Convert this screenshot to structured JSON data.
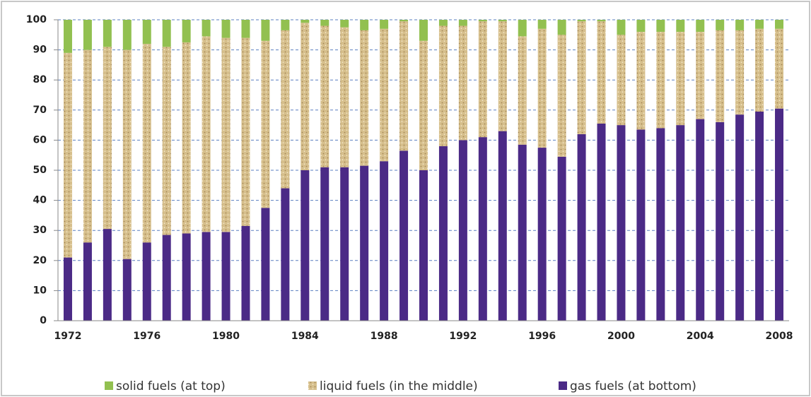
{
  "chart_data": {
    "type": "stacked-bar",
    "categories": [
      "1972",
      null,
      null,
      null,
      "1976",
      null,
      null,
      null,
      "1980",
      null,
      null,
      null,
      "1984",
      null,
      null,
      null,
      "1988",
      null,
      null,
      null,
      "1992",
      null,
      null,
      null,
      "1996",
      null,
      null,
      null,
      "2000",
      null,
      null,
      null,
      "2004",
      null,
      null,
      null,
      "2008"
    ],
    "series": [
      {
        "name": "solid fuels (at top)",
        "color": "#92c050",
        "values": [
          11,
          10,
          9,
          10,
          8,
          9,
          7.5,
          5.5,
          6,
          6,
          7,
          3.5,
          1,
          2,
          2.5,
          3.5,
          3,
          0.5,
          7,
          2,
          2,
          0.5,
          0.5,
          5.5,
          3,
          5,
          0.5,
          0.5,
          5,
          4,
          4,
          4,
          4,
          3.5,
          3.5,
          3,
          3
        ]
      },
      {
        "name": "liquid fuels (in the middle)",
        "color": "#d6bf8c",
        "values": [
          68,
          64,
          60.5,
          69.5,
          66,
          62.5,
          63.5,
          65,
          64.5,
          62.5,
          55.5,
          52.5,
          49,
          47,
          46.5,
          45,
          44,
          43,
          43,
          40,
          38,
          38.5,
          36.5,
          36,
          39.5,
          40.5,
          37.5,
          34,
          30,
          32.5,
          32,
          31,
          29,
          30.5,
          28,
          27.5,
          26.5
        ]
      },
      {
        "name": "gas fuels (at bottom)",
        "color": "#4b2a86",
        "values": [
          21,
          26,
          30.5,
          20.5,
          26,
          28.5,
          29,
          29.5,
          29.5,
          31.5,
          37.5,
          44,
          50,
          51,
          51,
          51.5,
          53,
          56.5,
          50,
          58,
          60,
          61,
          63,
          58.5,
          57.5,
          54.5,
          62,
          65.5,
          65,
          63.5,
          64,
          65,
          67,
          66,
          68.5,
          69.5,
          70.5
        ]
      }
    ],
    "ylim": [
      0,
      100
    ],
    "yticks": [
      0,
      10,
      20,
      30,
      40,
      50,
      60,
      70,
      80,
      90,
      100
    ],
    "grid": true
  }
}
